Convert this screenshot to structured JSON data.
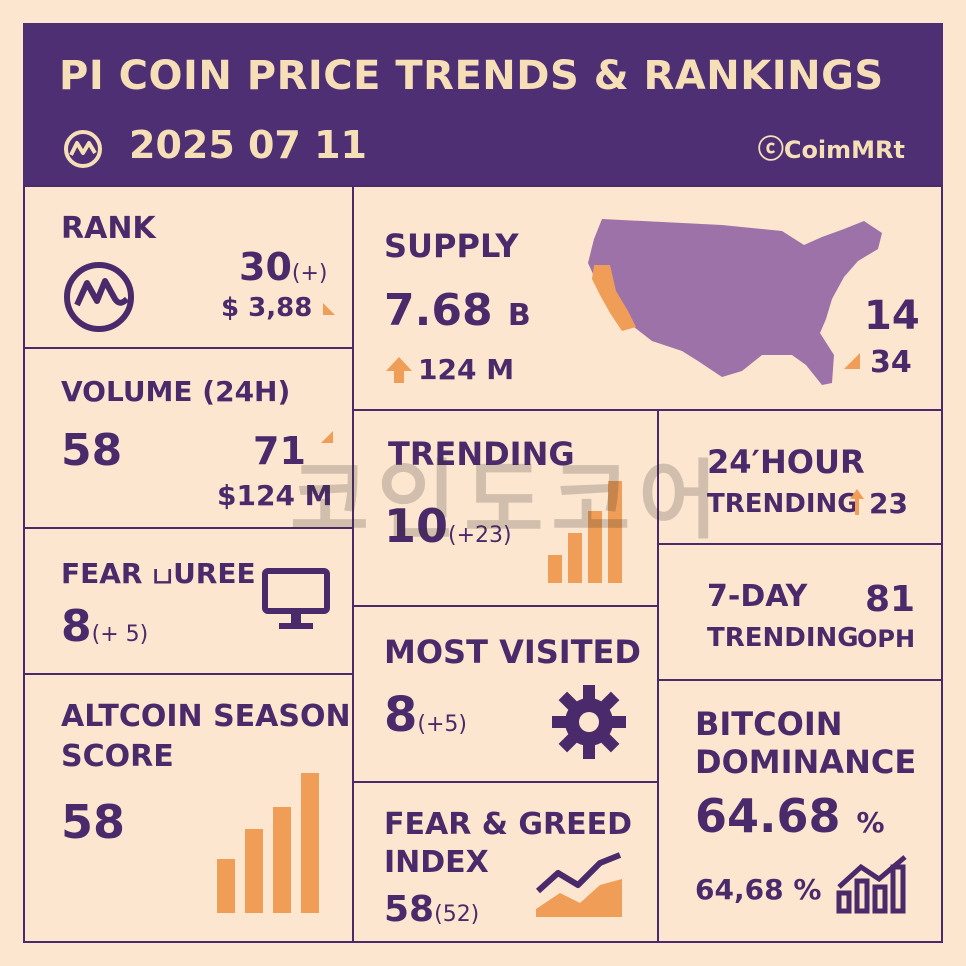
{
  "header": {
    "title": "PI COIN PRICE TRENDS & RANKINGS",
    "date": "2025 07 11",
    "brand": "CoimMRt",
    "logo_icon": "coinmarketcap-logo-icon"
  },
  "rank": {
    "label": "RANK",
    "value": "30",
    "change": "(+)",
    "price": "$ 3,88"
  },
  "supply": {
    "label": "SUPPLY",
    "value": "7.68",
    "unit": "B",
    "change": "124 M",
    "side_value": "14",
    "side_change": "34",
    "map_icon": "usa-map-icon"
  },
  "volume": {
    "label": "VOLUME (24H)",
    "value": "58",
    "side_value": "71",
    "amount": "$124 M"
  },
  "trending": {
    "label": "TRENDING",
    "value": "10",
    "change": "(+23)"
  },
  "trending_24h": {
    "label_line1": "24′HOUR",
    "label_line2": "TRENDING",
    "value": "23"
  },
  "fear_score": {
    "label": "FEAR பUREE",
    "value": "8",
    "change": "(+ 5)"
  },
  "trending_7d": {
    "label_line1": "7-DAY",
    "label_line2": "TRENDING",
    "value": "81",
    "suffix": "OPH"
  },
  "most_visited": {
    "label": "MOST VISITED",
    "value": "8",
    "change": "(+5)"
  },
  "altcoin": {
    "label_line1": "ALTCOIN SEASON",
    "label_line2": "SCORE",
    "value": "58"
  },
  "fear_greed": {
    "label_line1": "FEAR & GREED",
    "label_line2": "INDEX",
    "value": "58",
    "prev": "(52)"
  },
  "btc_dominance": {
    "label_line1": "BITCOIN",
    "label_line2": "DOMINANCE",
    "value": "64.68",
    "pct": "%",
    "sub_value": "64,68 %"
  },
  "watermark": "코인도코어",
  "colors": {
    "purple": "#4e2f73",
    "cream": "#fce6cf",
    "orange": "#ef9d57",
    "map_purple": "#9c72a8"
  }
}
